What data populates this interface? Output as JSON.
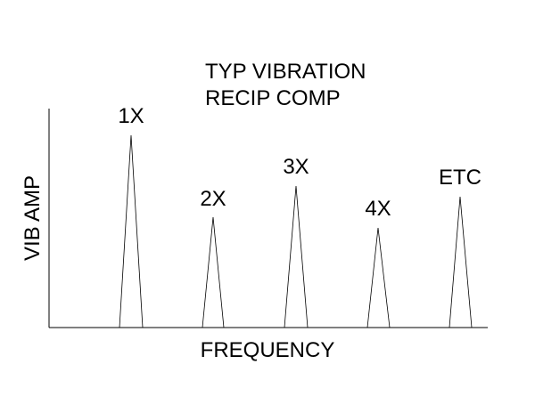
{
  "title": {
    "lines": [
      "TYP VIBRATION",
      "RECIP COMP"
    ]
  },
  "axes": {
    "y_label": "VIB AMP",
    "x_label": "FREQUENCY"
  },
  "peaks": [
    {
      "label": "1X"
    },
    {
      "label": "2X"
    },
    {
      "label": "3X"
    },
    {
      "label": "4X"
    },
    {
      "label": "ETC"
    }
  ]
}
